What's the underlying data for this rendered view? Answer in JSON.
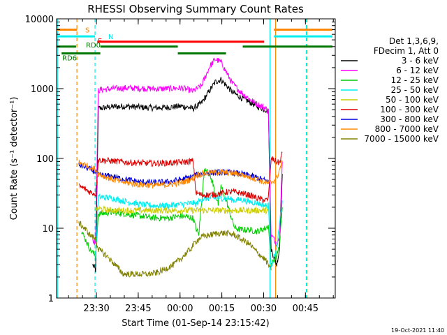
{
  "chart_data": {
    "type": "line",
    "title": "RHESSI Observing Summary Count Rates",
    "xlabel": "Start Time (01-Sep-14 23:15:42)",
    "ylabel": "Count Rate (s⁻¹ detector⁻¹)",
    "yscale": "log",
    "ylim": [
      1,
      10000
    ],
    "xlim_minutes": [
      0,
      100
    ],
    "xticks": [
      {
        "t": 14.3,
        "label": "23:30"
      },
      {
        "t": 29.3,
        "label": "23:45"
      },
      {
        "t": 44.3,
        "label": "00:00"
      },
      {
        "t": 59.3,
        "label": "00:15"
      },
      {
        "t": 74.3,
        "label": "00:30"
      },
      {
        "t": 89.3,
        "label": "00:45"
      }
    ],
    "yticks": [
      {
        "v": 1,
        "label": "1"
      },
      {
        "v": 10,
        "label": "10"
      },
      {
        "v": 100,
        "label": "100"
      },
      {
        "v": 1000,
        "label": "1000"
      },
      {
        "v": 10000,
        "label": "10000"
      }
    ],
    "legend_header": [
      "Det 1,3,6,9,",
      "FDecim 1, Att 0"
    ],
    "legend_position": "right",
    "series": [
      {
        "name": "3 - 6 keV",
        "color": "#000000",
        "x": [
          13,
          14,
          15,
          20,
          25,
          30,
          35,
          40,
          45,
          49,
          52,
          55,
          57,
          59,
          61,
          63,
          66,
          69,
          72,
          75,
          76,
          77,
          79,
          80,
          81
        ],
        "y": [
          3,
          2.5,
          520,
          550,
          560,
          540,
          530,
          540,
          560,
          520,
          620,
          950,
          1250,
          1350,
          1100,
          900,
          750,
          650,
          560,
          500,
          470,
          5,
          3,
          5,
          60
        ]
      },
      {
        "name": "6 - 12 keV",
        "color": "#ff00ff",
        "x": [
          13,
          14,
          15,
          20,
          25,
          30,
          35,
          40,
          45,
          49,
          52,
          55,
          57,
          59,
          61,
          63,
          66,
          69,
          72,
          75,
          76,
          77,
          79,
          80,
          81
        ],
        "y": [
          7,
          6,
          950,
          1000,
          1020,
          1010,
          990,
          1000,
          1020,
          920,
          1100,
          2100,
          2650,
          2400,
          1700,
          1200,
          900,
          720,
          600,
          520,
          480,
          8,
          6,
          8,
          90
        ]
      },
      {
        "name": "12 - 25 keV",
        "color": "#00cc00",
        "x": [
          9,
          12,
          14,
          15,
          20,
          25,
          30,
          35,
          40,
          45,
          49,
          50,
          51,
          53,
          54,
          56,
          57,
          58,
          59,
          61,
          63,
          64,
          66,
          69,
          72,
          75,
          76,
          77,
          79,
          80,
          81
        ],
        "y": [
          9,
          5,
          4,
          16,
          17,
          16,
          15,
          14,
          14,
          15,
          14,
          10,
          8,
          65,
          70,
          45,
          30,
          22,
          40,
          24,
          13,
          10,
          9.5,
          9.5,
          9,
          10,
          11,
          3,
          4,
          6,
          20
        ]
      },
      {
        "name": "25 - 50 keV",
        "color": "#00eeee",
        "x": [
          14,
          15,
          20,
          25,
          30,
          35,
          40,
          45,
          49,
          50,
          52,
          55,
          58,
          61,
          64,
          66,
          69,
          72,
          75,
          76,
          77,
          79,
          81
        ],
        "y": [
          4,
          28,
          27,
          24,
          22,
          21,
          21,
          22,
          23,
          22,
          26,
          27,
          27,
          27,
          25,
          26,
          24,
          23,
          21,
          21,
          3,
          5,
          25
        ]
      },
      {
        "name": "50 - 100 keV",
        "color": "#cccc00",
        "x": [
          14,
          15,
          20,
          25,
          30,
          35,
          40,
          45,
          49,
          50,
          52,
          55,
          58,
          61,
          64,
          66,
          69,
          72,
          75,
          76
        ],
        "y": [
          19,
          19,
          18,
          18,
          18,
          18,
          18,
          18,
          18,
          18,
          18,
          18,
          18,
          18,
          18,
          18,
          18,
          18,
          18,
          18
        ]
      },
      {
        "name": "100 - 300 keV",
        "color": "#dd0000",
        "x": [
          8,
          10,
          12,
          14,
          15,
          20,
          25,
          30,
          35,
          40,
          45,
          49,
          50,
          52,
          55,
          58,
          61,
          64,
          66,
          69,
          72,
          75,
          76,
          77,
          79,
          80,
          81
        ],
        "y": [
          40,
          37,
          33,
          31,
          95,
          92,
          88,
          86,
          85,
          86,
          88,
          92,
          32,
          30,
          30,
          31,
          33,
          33,
          32,
          30,
          27,
          25,
          26,
          100,
          90,
          85,
          120
        ]
      },
      {
        "name": "300 - 800 keV",
        "color": "#0000dd",
        "x": [
          8,
          10,
          12,
          14,
          15,
          20,
          25,
          30,
          35,
          40,
          45,
          49,
          50,
          52,
          55,
          58,
          61,
          64,
          66,
          69,
          72,
          75,
          76
        ],
        "y": [
          80,
          76,
          70,
          64,
          58,
          55,
          50,
          46,
          45,
          46,
          50,
          55,
          58,
          60,
          62,
          63,
          63,
          62,
          60,
          57,
          53,
          48,
          47
        ]
      },
      {
        "name": "800 - 7000 keV",
        "color": "#ff8800",
        "x": [
          8,
          10,
          12,
          14,
          15,
          20,
          25,
          30,
          35,
          40,
          45,
          49,
          50,
          52,
          55,
          58,
          61,
          64,
          66,
          69,
          72,
          75,
          76,
          77,
          79,
          81
        ],
        "y": [
          88,
          82,
          75,
          70,
          60,
          50,
          45,
          42,
          41,
          42,
          45,
          52,
          57,
          60,
          62,
          63,
          63,
          61,
          59,
          55,
          50,
          45,
          44,
          45,
          52,
          90
        ]
      },
      {
        "name": "7000 - 15000 keV",
        "color": "#808000",
        "x": [
          8,
          10,
          12,
          14,
          15,
          18,
          21,
          24,
          27,
          30,
          33,
          36,
          39,
          42,
          45,
          48,
          50,
          52,
          55,
          58,
          61,
          64,
          66,
          69,
          72,
          75,
          76,
          77
        ],
        "y": [
          12,
          10,
          8,
          7,
          5,
          4,
          3,
          2.2,
          2.2,
          2.2,
          2.2,
          2.3,
          2.6,
          3,
          3.8,
          5,
          6.5,
          7.5,
          8,
          8.5,
          8.5,
          8,
          7,
          6,
          4.5,
          3.5,
          3,
          2.5
        ]
      }
    ],
    "state_bars": [
      {
        "label": "S",
        "color": "#ff8800",
        "level": 7000,
        "segments": [
          [
            -99,
            7.4
          ],
          [
            78,
            99
          ]
        ]
      },
      {
        "label": "N",
        "color": "#00eeee",
        "level": 5600,
        "segments": [
          [
            -99,
            13.8
          ],
          [
            78,
            99
          ]
        ]
      },
      {
        "label": "F",
        "color": "#ff0000",
        "level": 4700,
        "segments": [
          [
            14.6,
            74.5
          ]
        ]
      },
      {
        "label": "RD0",
        "color": "#007700",
        "level": 4000,
        "segments": [
          [
            -99,
            7.0
          ],
          [
            15.7,
            43.5
          ],
          [
            66.8,
            99
          ]
        ]
      },
      {
        "label": "RD6",
        "color": "#007700",
        "level": 3200,
        "segments": [
          [
            1.8,
            15.7
          ],
          [
            43.5,
            60.8
          ]
        ]
      }
    ],
    "vertical_markers": [
      {
        "t": 0.3,
        "color": "#00eeee",
        "style": "solid"
      },
      {
        "t": 7.3,
        "color": "#ff8800",
        "style": "dashed"
      },
      {
        "t": 13.8,
        "color": "#00eeee",
        "style": "dashed"
      },
      {
        "t": 76.6,
        "color": "#00eeee",
        "style": "solid"
      },
      {
        "t": 78.6,
        "color": "#ff8800",
        "style": "solid"
      },
      {
        "t": 89.6,
        "color": "#00eeee",
        "style": "dashed"
      },
      {
        "t": 89.9,
        "color": "#ff8800",
        "style": "dashed"
      }
    ],
    "timestamp": "19-Oct-2021 11:40"
  }
}
